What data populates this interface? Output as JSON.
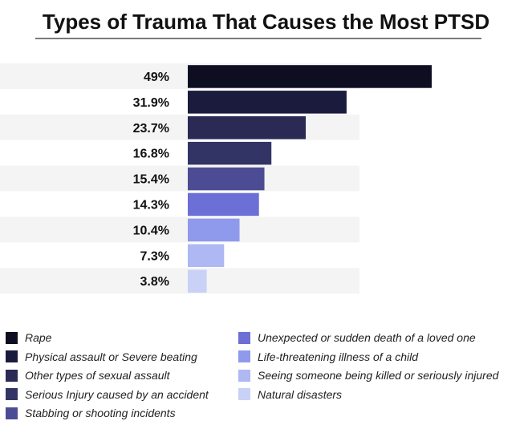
{
  "chart_data": {
    "type": "bar",
    "orientation": "horizontal",
    "title": "Types of Trauma That Causes the Most PTSD",
    "categories": [
      "Rape",
      "Physical assault or Severe beating",
      "Other types of sexual assault",
      "Serious Injury caused by an accident",
      "Stabbing or shooting incidents",
      "Unexpected or sudden death of a loved one",
      "Life-threatening illness of a child",
      "Seeing someone being killed or seriously injured",
      "Natural disasters"
    ],
    "values": [
      49,
      31.9,
      23.7,
      16.8,
      15.4,
      14.3,
      10.4,
      7.3,
      3.8
    ],
    "value_labels": [
      "49%",
      "31.9%",
      "23.7%",
      "16.8%",
      "15.4%",
      "14.3%",
      "10.4%",
      "7.3%",
      "3.8%"
    ],
    "colors": [
      "#0e0e22",
      "#1b1b3e",
      "#2a2a55",
      "#333466",
      "#4c4c94",
      "#6b6fd6",
      "#8f9aec",
      "#aeb8f3",
      "#c9d1f7"
    ],
    "xlim": [
      0,
      49
    ],
    "row_band_color": "#f4f4f4",
    "legend_position": "bottom",
    "grid": false
  }
}
